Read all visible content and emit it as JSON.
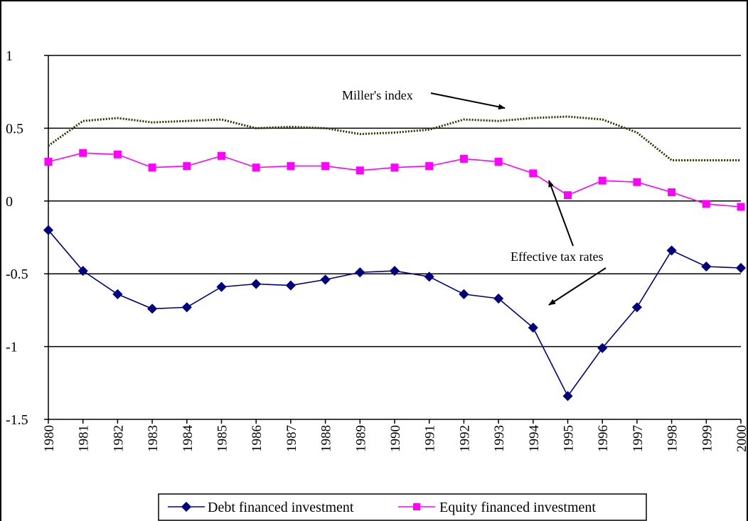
{
  "chart_data": {
    "type": "line",
    "categories": [
      "1980",
      "1981",
      "1982",
      "1983",
      "1984",
      "1985",
      "1986",
      "1987",
      "1988",
      "1989",
      "1990",
      "1991",
      "1992",
      "1993",
      "1994",
      "1995",
      "1996",
      "1997",
      "1998",
      "1999",
      "2000"
    ],
    "ylim": [
      -1.5,
      1
    ],
    "yticks": [
      "1",
      "0.5",
      "0",
      "-0.5",
      "-1",
      "-1.5"
    ],
    "ytick_values": [
      1,
      0.5,
      0,
      -0.5,
      -1,
      -1.5
    ],
    "grid": "horizontal",
    "legend_position": "bottom",
    "series": [
      {
        "name": "Debt financed investment",
        "color": "#000080",
        "marker": "diamond",
        "values": [
          -0.2,
          -0.48,
          -0.64,
          -0.74,
          -0.73,
          -0.59,
          -0.57,
          -0.58,
          -0.54,
          -0.49,
          -0.48,
          -0.52,
          -0.64,
          -0.67,
          -0.87,
          -1.34,
          -1.01,
          -0.73,
          -0.34,
          -0.45,
          -0.46
        ]
      },
      {
        "name": "Equity financed investment",
        "color": "#ff00ff",
        "marker": "square",
        "values": [
          0.27,
          0.33,
          0.32,
          0.23,
          0.24,
          0.31,
          0.23,
          0.24,
          0.24,
          0.21,
          0.23,
          0.24,
          0.29,
          0.27,
          0.19,
          0.04,
          0.14,
          0.13,
          0.06,
          -0.02,
          -0.04
        ]
      },
      {
        "color": "#333300",
        "style": "dotted",
        "values": [
          0.38,
          0.55,
          0.57,
          0.54,
          0.55,
          0.56,
          0.5,
          0.51,
          0.5,
          0.46,
          0.47,
          0.49,
          0.56,
          0.55,
          0.57,
          0.58,
          0.56,
          0.47,
          0.28,
          0.28,
          0.28
        ]
      }
    ],
    "annotations": {
      "miller": "Miller's index",
      "effective": "Effective tax rates"
    }
  }
}
